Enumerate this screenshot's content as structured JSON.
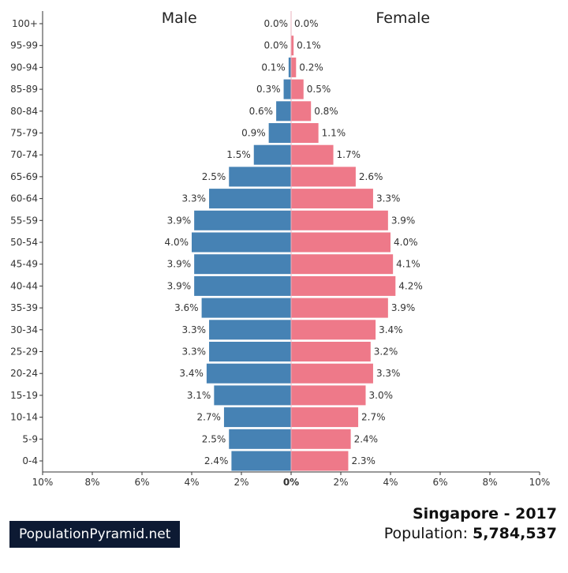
{
  "chart_data": {
    "type": "bar",
    "orientation": "horizontal-population-pyramid",
    "categories": [
      "0-4",
      "5-9",
      "10-14",
      "15-19",
      "20-24",
      "25-29",
      "30-34",
      "35-39",
      "40-44",
      "45-49",
      "50-54",
      "55-59",
      "60-64",
      "65-69",
      "70-74",
      "75-79",
      "80-84",
      "85-89",
      "90-94",
      "95-99",
      "100+"
    ],
    "series": [
      {
        "name": "Male",
        "color": "#4682b4",
        "values": [
          2.4,
          2.5,
          2.7,
          3.1,
          3.4,
          3.3,
          3.3,
          3.6,
          3.9,
          3.9,
          4.0,
          3.9,
          3.3,
          2.5,
          1.5,
          0.9,
          0.6,
          0.3,
          0.1,
          0.0,
          0.0
        ],
        "labels": [
          "2.4%",
          "2.5%",
          "2.7%",
          "3.1%",
          "3.4%",
          "3.3%",
          "3.3%",
          "3.6%",
          "3.9%",
          "3.9%",
          "4.0%",
          "3.9%",
          "3.3%",
          "2.5%",
          "1.5%",
          "0.9%",
          "0.6%",
          "0.3%",
          "0.1%",
          "0.0%",
          "0.0%"
        ]
      },
      {
        "name": "Female",
        "color": "#ee7989",
        "values": [
          2.3,
          2.4,
          2.7,
          3.0,
          3.3,
          3.2,
          3.4,
          3.9,
          4.2,
          4.1,
          4.0,
          3.9,
          3.3,
          2.6,
          1.7,
          1.1,
          0.8,
          0.5,
          0.2,
          0.1,
          0.0
        ],
        "labels": [
          "2.3%",
          "2.4%",
          "2.7%",
          "3.0%",
          "3.3%",
          "3.2%",
          "3.4%",
          "3.9%",
          "4.2%",
          "4.1%",
          "4.0%",
          "3.9%",
          "3.3%",
          "2.6%",
          "1.7%",
          "1.1%",
          "0.8%",
          "0.5%",
          "0.2%",
          "0.1%",
          "0.0%"
        ]
      }
    ],
    "xlim": [
      -10,
      10
    ],
    "xticks": [
      "10%",
      "8%",
      "6%",
      "4%",
      "2%",
      "0%",
      "2%",
      "4%",
      "6%",
      "8%",
      "10%"
    ],
    "grid": false
  },
  "footer": {
    "brand": "PopulationPyramid.net",
    "country_year": "Singapore - 2017",
    "population_label": "Population: ",
    "population_value": "5,784,537"
  }
}
